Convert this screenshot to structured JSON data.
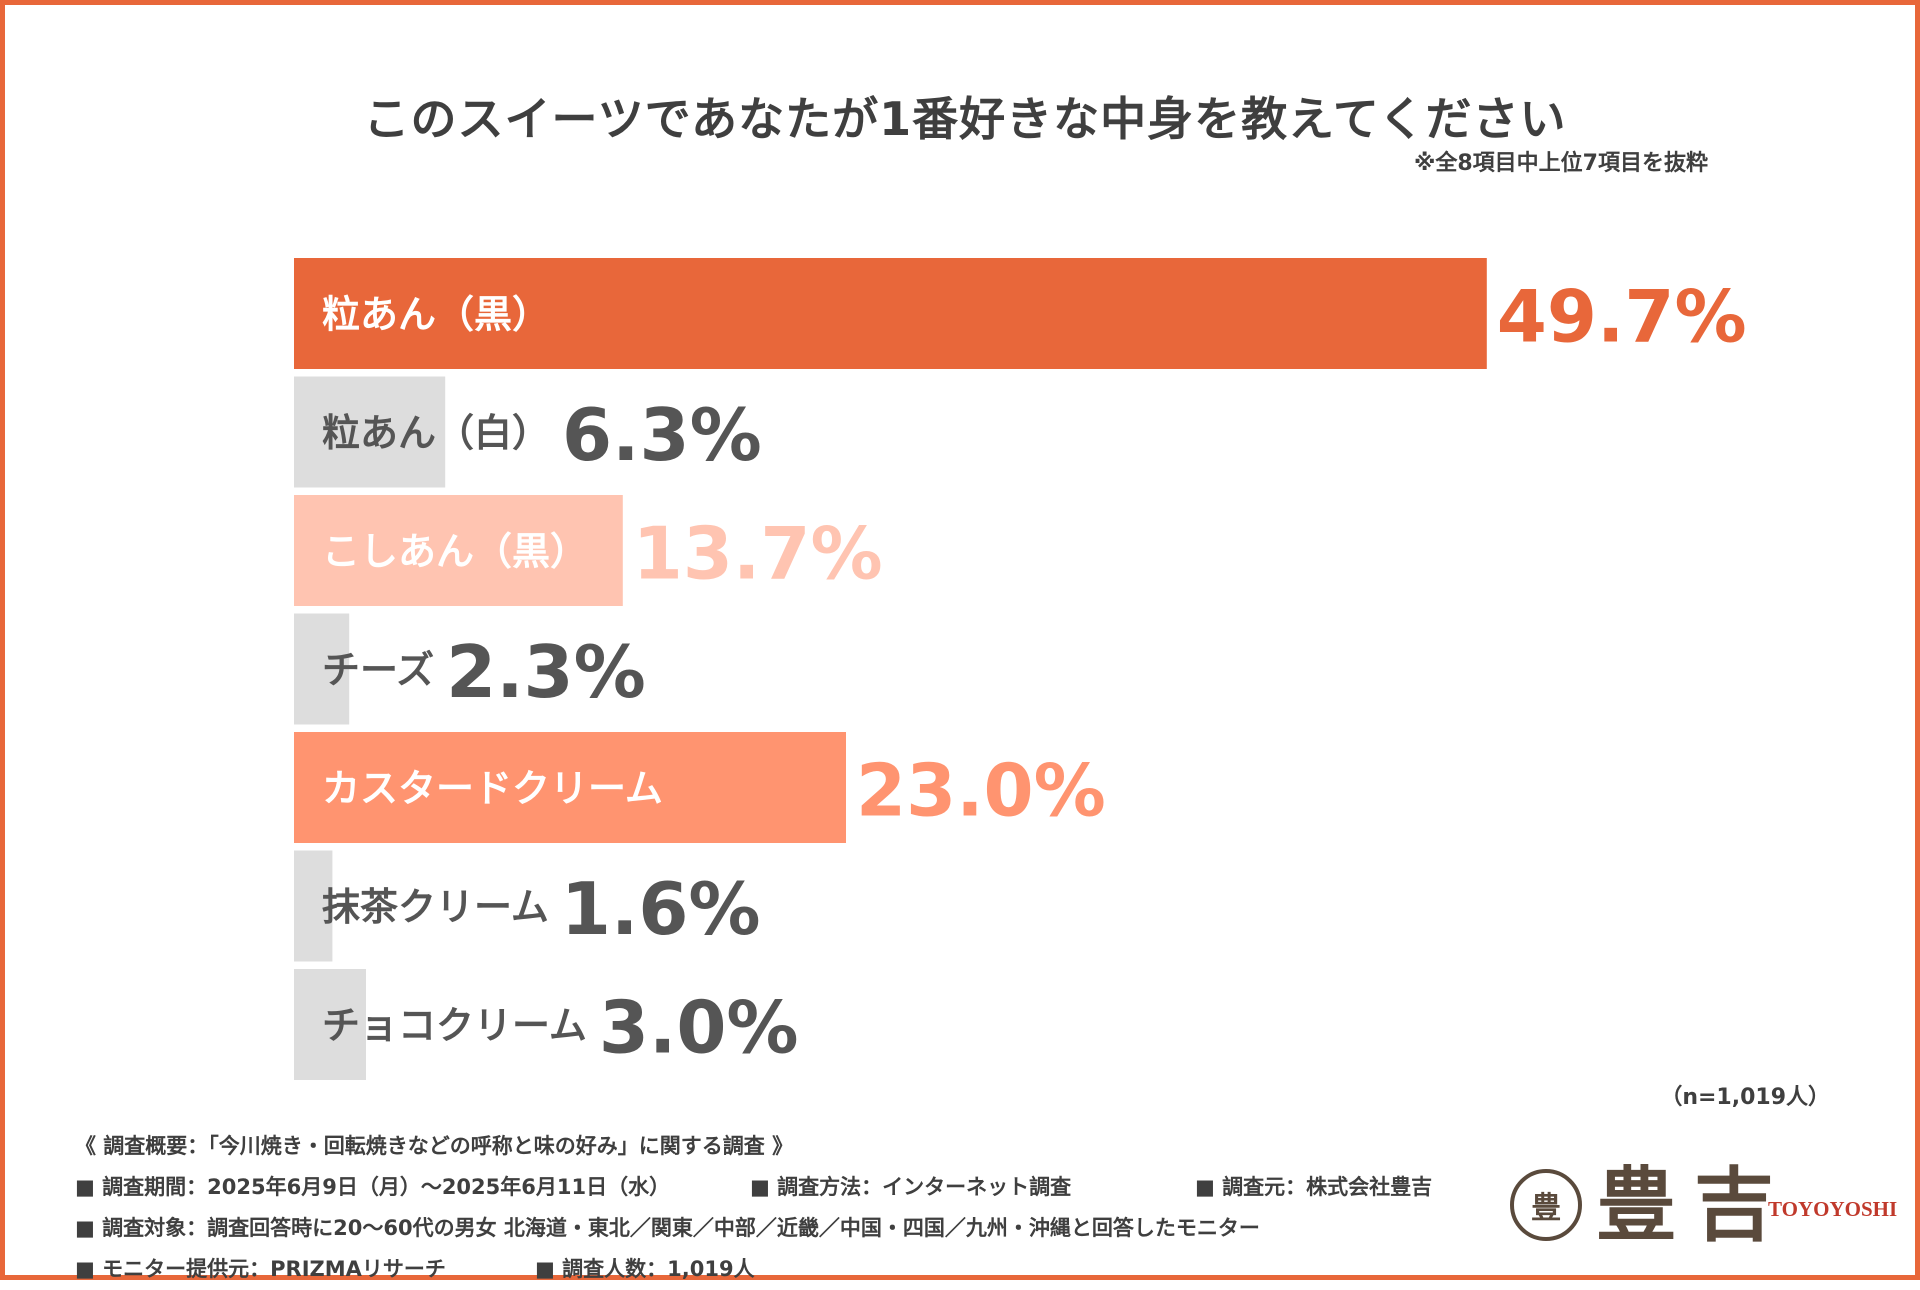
{
  "chart_data": {
    "type": "bar",
    "orientation": "horizontal",
    "title": "このスイーツであなたが1番好きな中身を教えてください",
    "note": "※全8項目中上位7項目を抜粋",
    "n_label": "（n=1,019人）",
    "categories": [
      "粒あん（黒）",
      "粒あん（白）",
      "こしあん（黒）",
      "チーズ",
      "カスタードクリーム",
      "抹茶クリーム",
      "チョコクリーム"
    ],
    "values": [
      49.7,
      6.3,
      13.7,
      2.3,
      23.0,
      1.6,
      3.0
    ],
    "value_labels": [
      "49.7%",
      "6.3%",
      "13.7%",
      "2.3%",
      "23.0%",
      "1.6%",
      "3.0%"
    ],
    "bar_colors": [
      "#E8673A",
      "#DDDDDD",
      "#FFC4B1",
      "#DDDDDD",
      "#FF9470",
      "#DDDDDD",
      "#DDDDDD"
    ],
    "label_colors": [
      "#FFFFFF",
      "#555555",
      "#FFFFFF",
      "#555555",
      "#FFFFFF",
      "#555555",
      "#555555"
    ],
    "value_colors": [
      "#E8673A",
      "#555555",
      "#FFC4B1",
      "#555555",
      "#FF9470",
      "#555555",
      "#555555"
    ],
    "xlim": [
      0,
      50
    ],
    "grid": false,
    "legend": false
  },
  "survey": {
    "heading": "《 調査概要：「今川焼き・回転焼きなどの呼称と味の好み」に関する調査 》",
    "period": "■ 調査期間：2025年6月9日（月）～2025年6月11日（水）",
    "method": "■ 調査方法：インターネット調査",
    "organizer": "■ 調査元：株式会社豊吉",
    "target": "■ 調査対象：調査回答時に20～60代の男女 北海道・東北／関東／中部／近畿／中国・四国／九州・沖縄と回答したモニター",
    "provider": "■ モニター提供元：PRIZMAリサーチ",
    "respondents": "■ 調査人数：1,019人"
  },
  "logo": {
    "mark": "豊",
    "kanji": "豊吉",
    "roman": "TOYOYOSHI",
    "color": "#5A4A3C",
    "roman_color": "#C0392B"
  }
}
